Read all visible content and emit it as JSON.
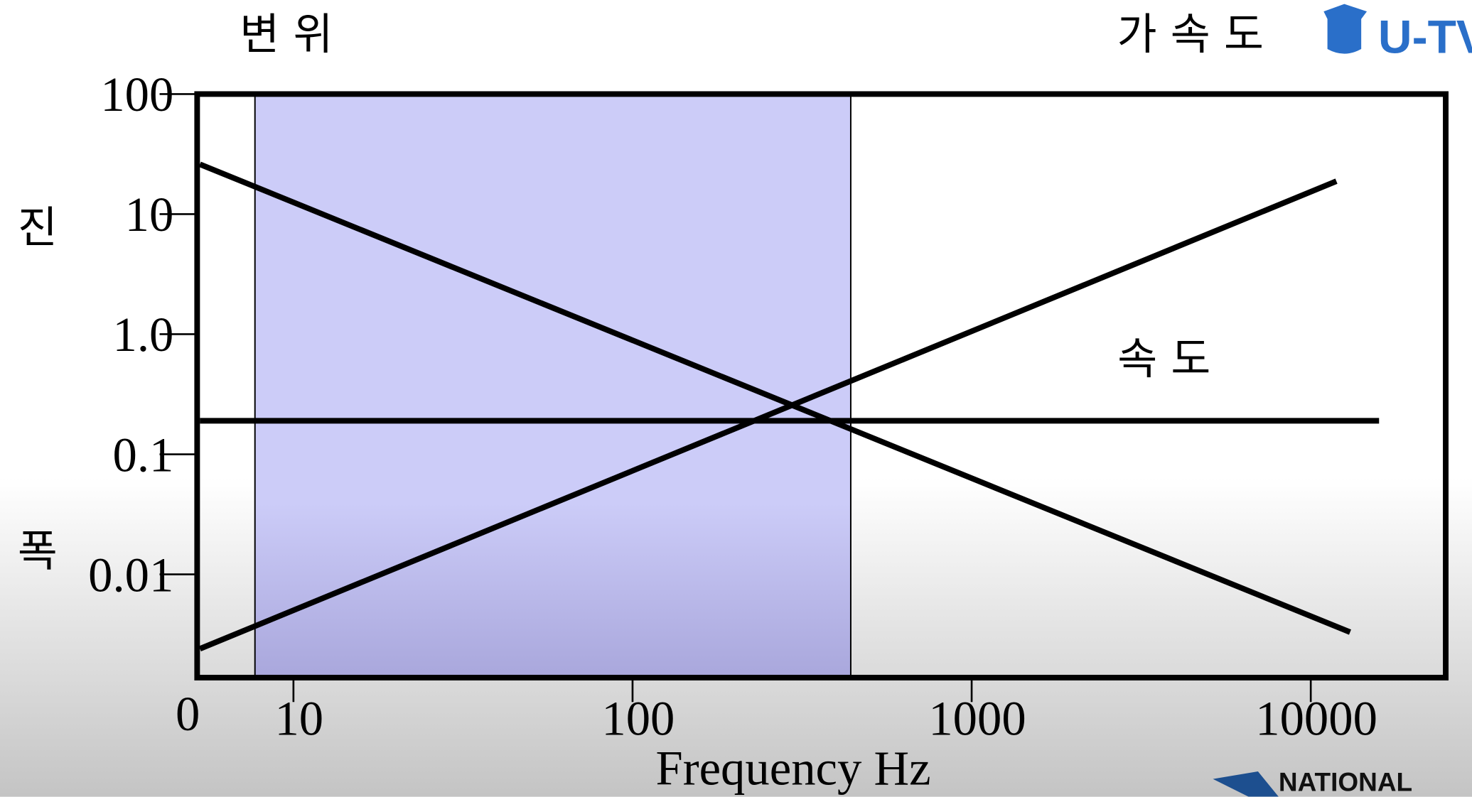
{
  "chart_data": {
    "type": "line",
    "x_label": "Frequency    Hz",
    "y_label_top": "진",
    "y_label_bottom": "폭",
    "x_origin_label": "0",
    "x_scale": "log",
    "y_scale": "log",
    "xlim": [
      5.2,
      25000
    ],
    "ylim": [
      0.00138,
      100
    ],
    "xticks": [
      10,
      100,
      1000,
      10000
    ],
    "yticks": [
      100,
      10,
      {
        "value": 1,
        "label": "1.0"
      },
      0.1,
      0.01
    ],
    "highlight_range": [
      7.7,
      440
    ],
    "highlight_color": "#ccccf8",
    "series": [
      {
        "name": "변 위",
        "color": "#000000",
        "x": [
          5.3,
          13060
        ],
        "y": [
          26,
          0.0033
        ]
      },
      {
        "name": "속 도",
        "color": "#000000",
        "x": [
          5.3,
          15900
        ],
        "y": [
          0.19,
          0.19
        ]
      },
      {
        "name": "가 속 도",
        "color": "#000000",
        "x": [
          5.3,
          11900
        ],
        "y": [
          0.0024,
          18.8
        ]
      }
    ],
    "logo_text": "U-TV",
    "footer_logo": "NATIONAL"
  }
}
